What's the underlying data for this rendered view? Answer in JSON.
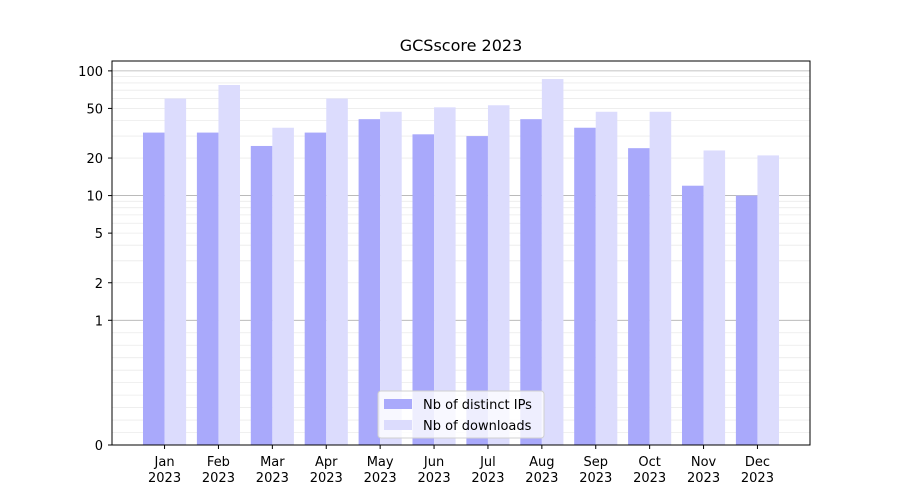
{
  "chart_data": {
    "type": "bar",
    "title": "GCSscore 2023",
    "y_scale": "symlog",
    "y_ticks": [
      0,
      1,
      2,
      5,
      10,
      20,
      50,
      100
    ],
    "ylim": [
      0,
      120
    ],
    "categories": [
      [
        "Jan",
        "2023"
      ],
      [
        "Feb",
        "2023"
      ],
      [
        "Mar",
        "2023"
      ],
      [
        "Apr",
        "2023"
      ],
      [
        "May",
        "2023"
      ],
      [
        "Jun",
        "2023"
      ],
      [
        "Jul",
        "2023"
      ],
      [
        "Aug",
        "2023"
      ],
      [
        "Sep",
        "2023"
      ],
      [
        "Oct",
        "2023"
      ],
      [
        "Nov",
        "2023"
      ],
      [
        "Dec",
        "2023"
      ]
    ],
    "series": [
      {
        "name": "Nb of distinct IPs",
        "color": "#a9a9fb",
        "values": [
          32,
          32,
          25,
          32,
          41,
          31,
          30,
          41,
          35,
          24,
          12,
          10
        ]
      },
      {
        "name": "Nb of downloads",
        "color": "#dcdcfd",
        "values": [
          60,
          77,
          35,
          60,
          47,
          51,
          53,
          86,
          47,
          47,
          23,
          21
        ]
      }
    ],
    "legend_position": "lower center",
    "grid": "horizontal"
  }
}
